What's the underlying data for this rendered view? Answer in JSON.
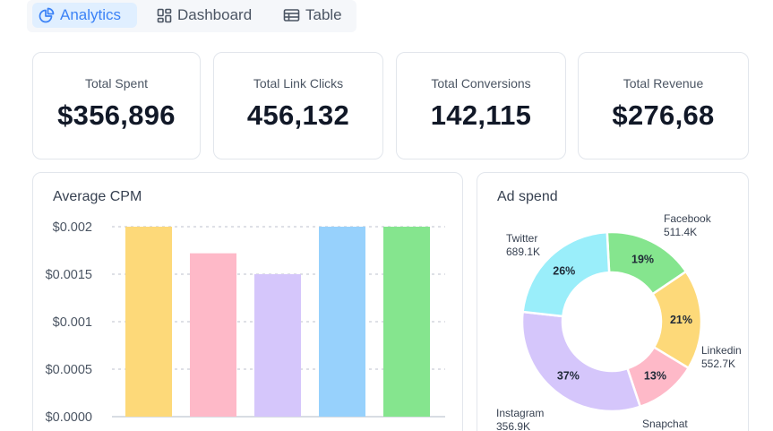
{
  "tabs": [
    {
      "label": "Analytics",
      "icon": "pie-chart-icon",
      "active": true
    },
    {
      "label": "Dashboard",
      "icon": "dashboard-grid-icon",
      "active": false
    },
    {
      "label": "Table",
      "icon": "table-icon",
      "active": false
    }
  ],
  "stats": [
    {
      "label": "Total Spent",
      "value": "$356,896"
    },
    {
      "label": "Total Link Clicks",
      "value": "456,132"
    },
    {
      "label": "Total Conversions",
      "value": "142,115"
    },
    {
      "label": "Total Revenue",
      "value": "$276,68"
    }
  ],
  "colors": {
    "accent": "#3b82f6",
    "accent_bg": "#e0efff"
  },
  "chart_data": [
    {
      "type": "bar",
      "title": "Average CPM",
      "categories": [
        "",
        "",
        "",
        "",
        ""
      ],
      "values": [
        0.002,
        0.00172,
        0.0015,
        0.002,
        0.002
      ],
      "colors": [
        "#fdd979",
        "#feb9c8",
        "#d5c6fb",
        "#97d1fc",
        "#85e58e"
      ],
      "ylim": [
        0,
        0.002
      ],
      "yticks": [
        0,
        0.0005,
        0.001,
        0.0015,
        0.002
      ],
      "ytick_labels": [
        "$0.0000",
        "$0.0005",
        "$0.001",
        "$0.0015",
        "$0.002"
      ],
      "grid": true,
      "grid_style": "dashed"
    },
    {
      "type": "pie",
      "title": "Ad spend",
      "donut": true,
      "slices": [
        {
          "label": "Facebook",
          "amount": "511.4K",
          "value": 19,
          "pct_label": "19%",
          "color": "#85e58e"
        },
        {
          "label": "Linkedin",
          "amount": "552.7K",
          "value": 21,
          "pct_label": "21%",
          "color": "#fdd979"
        },
        {
          "label": "Snapchat",
          "amount": "",
          "value": 13,
          "pct_label": "13%",
          "color": "#feb9c8"
        },
        {
          "label": "Instagram",
          "amount": "356.9K",
          "value": 37,
          "pct_label": "37%",
          "color": "#d5c6fb"
        },
        {
          "label": "Twitter",
          "amount": "689.1K",
          "value": 26,
          "pct_label": "26%",
          "color": "#9aeefa"
        }
      ]
    }
  ]
}
